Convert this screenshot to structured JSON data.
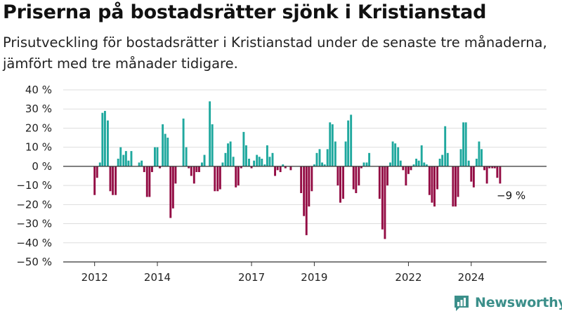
{
  "header": {
    "title": "Priserna på bostadsrätter sjönk i Kristianstad",
    "subtitle": "Prisutveckling för bostadsrätter i Kristianstad under de senaste tre månaderna, jämfört med tre månader tidigare."
  },
  "brand": {
    "name": "Newsworthy",
    "icon": "newsworthy-logo-icon",
    "color": "#3b8f8a"
  },
  "colors": {
    "positive": "#1fa89e",
    "negative": "#930c44",
    "grid": "#dddddd",
    "axis": "#333333"
  },
  "chart_data": {
    "type": "bar",
    "title": "",
    "xlabel": "",
    "ylabel": "",
    "ylim": [
      -50,
      40
    ],
    "y_ticks": [
      40,
      30,
      20,
      10,
      0,
      -10,
      -20,
      -30,
      -40,
      -50
    ],
    "y_tick_labels": [
      "40 %",
      "30 %",
      "20 %",
      "10 %",
      "0 %",
      "−10 %",
      "−20 %",
      "−30 %",
      "−40 %",
      "−50 %"
    ],
    "x_range": [
      2011.0,
      2026.4
    ],
    "x_ticks": [
      2012,
      2014,
      2017,
      2019,
      2022,
      2024
    ],
    "grid": "horizontal",
    "annotation": {
      "text": "−9 %",
      "x": 2025.08,
      "y": -9
    },
    "series": [
      {
        "values": [
          {
            "x": 2012.0,
            "y": -15
          },
          {
            "x": 2012.08,
            "y": -6
          },
          {
            "x": 2012.17,
            "y": 2
          },
          {
            "x": 2012.25,
            "y": 28
          },
          {
            "x": 2012.33,
            "y": 29
          },
          {
            "x": 2012.42,
            "y": 24
          },
          {
            "x": 2012.5,
            "y": -13
          },
          {
            "x": 2012.58,
            "y": -15
          },
          {
            "x": 2012.67,
            "y": -15
          },
          {
            "x": 2012.75,
            "y": 4
          },
          {
            "x": 2012.83,
            "y": 10
          },
          {
            "x": 2012.92,
            "y": 6
          },
          {
            "x": 2013.0,
            "y": 8
          },
          {
            "x": 2013.08,
            "y": 3
          },
          {
            "x": 2013.17,
            "y": 8
          },
          {
            "x": 2013.25,
            "y": 0
          },
          {
            "x": 2013.33,
            "y": 0
          },
          {
            "x": 2013.42,
            "y": 2
          },
          {
            "x": 2013.5,
            "y": 3
          },
          {
            "x": 2013.58,
            "y": -3
          },
          {
            "x": 2013.67,
            "y": -16
          },
          {
            "x": 2013.75,
            "y": -16
          },
          {
            "x": 2013.83,
            "y": -3
          },
          {
            "x": 2013.92,
            "y": 10
          },
          {
            "x": 2014.0,
            "y": 10
          },
          {
            "x": 2014.08,
            "y": -1
          },
          {
            "x": 2014.17,
            "y": 22
          },
          {
            "x": 2014.25,
            "y": 17
          },
          {
            "x": 2014.33,
            "y": 15
          },
          {
            "x": 2014.42,
            "y": -27
          },
          {
            "x": 2014.5,
            "y": -22
          },
          {
            "x": 2014.58,
            "y": -9
          },
          {
            "x": 2014.67,
            "y": 0
          },
          {
            "x": 2014.75,
            "y": 0
          },
          {
            "x": 2014.83,
            "y": 25
          },
          {
            "x": 2014.92,
            "y": 10
          },
          {
            "x": 2015.0,
            "y": -1
          },
          {
            "x": 2015.08,
            "y": -5
          },
          {
            "x": 2015.17,
            "y": -9
          },
          {
            "x": 2015.25,
            "y": -3
          },
          {
            "x": 2015.33,
            "y": -3
          },
          {
            "x": 2015.42,
            "y": 2
          },
          {
            "x": 2015.5,
            "y": 6
          },
          {
            "x": 2015.58,
            "y": 0
          },
          {
            "x": 2015.67,
            "y": 34
          },
          {
            "x": 2015.75,
            "y": 22
          },
          {
            "x": 2015.83,
            "y": -13
          },
          {
            "x": 2015.92,
            "y": -13
          },
          {
            "x": 2016.0,
            "y": -12
          },
          {
            "x": 2016.08,
            "y": 2
          },
          {
            "x": 2016.17,
            "y": 7
          },
          {
            "x": 2016.25,
            "y": 12
          },
          {
            "x": 2016.33,
            "y": 13
          },
          {
            "x": 2016.42,
            "y": 5
          },
          {
            "x": 2016.5,
            "y": -11
          },
          {
            "x": 2016.58,
            "y": -10
          },
          {
            "x": 2016.67,
            "y": -1
          },
          {
            "x": 2016.75,
            "y": 18
          },
          {
            "x": 2016.83,
            "y": 11
          },
          {
            "x": 2016.92,
            "y": 4
          },
          {
            "x": 2017.0,
            "y": -1
          },
          {
            "x": 2017.08,
            "y": 3
          },
          {
            "x": 2017.17,
            "y": 6
          },
          {
            "x": 2017.25,
            "y": 5
          },
          {
            "x": 2017.33,
            "y": 4
          },
          {
            "x": 2017.42,
            "y": 1
          },
          {
            "x": 2017.5,
            "y": 11
          },
          {
            "x": 2017.58,
            "y": 5
          },
          {
            "x": 2017.67,
            "y": 7
          },
          {
            "x": 2017.75,
            "y": -5
          },
          {
            "x": 2017.83,
            "y": -2
          },
          {
            "x": 2017.92,
            "y": -3
          },
          {
            "x": 2018.0,
            "y": 1
          },
          {
            "x": 2018.08,
            "y": -1
          },
          {
            "x": 2018.17,
            "y": 0
          },
          {
            "x": 2018.25,
            "y": -2
          },
          {
            "x": 2018.33,
            "y": 0
          },
          {
            "x": 2018.42,
            "y": 0
          },
          {
            "x": 2018.5,
            "y": 0
          },
          {
            "x": 2018.58,
            "y": -14
          },
          {
            "x": 2018.67,
            "y": -26
          },
          {
            "x": 2018.75,
            "y": -36
          },
          {
            "x": 2018.83,
            "y": -21
          },
          {
            "x": 2018.92,
            "y": -13
          },
          {
            "x": 2019.0,
            "y": 1
          },
          {
            "x": 2019.08,
            "y": 7
          },
          {
            "x": 2019.17,
            "y": 9
          },
          {
            "x": 2019.25,
            "y": 2
          },
          {
            "x": 2019.33,
            "y": 1
          },
          {
            "x": 2019.42,
            "y": 9
          },
          {
            "x": 2019.5,
            "y": 23
          },
          {
            "x": 2019.58,
            "y": 22
          },
          {
            "x": 2019.67,
            "y": 13
          },
          {
            "x": 2019.75,
            "y": -10
          },
          {
            "x": 2019.83,
            "y": -19
          },
          {
            "x": 2019.92,
            "y": -17
          },
          {
            "x": 2020.0,
            "y": 13
          },
          {
            "x": 2020.08,
            "y": 24
          },
          {
            "x": 2020.17,
            "y": 27
          },
          {
            "x": 2020.25,
            "y": -12
          },
          {
            "x": 2020.33,
            "y": -14
          },
          {
            "x": 2020.42,
            "y": -10
          },
          {
            "x": 2020.5,
            "y": -1
          },
          {
            "x": 2020.58,
            "y": 2
          },
          {
            "x": 2020.67,
            "y": 2
          },
          {
            "x": 2020.75,
            "y": 7
          },
          {
            "x": 2020.83,
            "y": 0
          },
          {
            "x": 2020.92,
            "y": 0
          },
          {
            "x": 2021.0,
            "y": 0
          },
          {
            "x": 2021.08,
            "y": -17
          },
          {
            "x": 2021.17,
            "y": -33
          },
          {
            "x": 2021.25,
            "y": -38
          },
          {
            "x": 2021.33,
            "y": -10
          },
          {
            "x": 2021.42,
            "y": 2
          },
          {
            "x": 2021.5,
            "y": 13
          },
          {
            "x": 2021.58,
            "y": 12
          },
          {
            "x": 2021.67,
            "y": 10
          },
          {
            "x": 2021.75,
            "y": 3
          },
          {
            "x": 2021.83,
            "y": -2
          },
          {
            "x": 2021.92,
            "y": -10
          },
          {
            "x": 2022.0,
            "y": -4
          },
          {
            "x": 2022.08,
            "y": -2
          },
          {
            "x": 2022.17,
            "y": 1
          },
          {
            "x": 2022.25,
            "y": 4
          },
          {
            "x": 2022.33,
            "y": 3
          },
          {
            "x": 2022.42,
            "y": 11
          },
          {
            "x": 2022.5,
            "y": 2
          },
          {
            "x": 2022.58,
            "y": 1
          },
          {
            "x": 2022.67,
            "y": -15
          },
          {
            "x": 2022.75,
            "y": -19
          },
          {
            "x": 2022.83,
            "y": -21
          },
          {
            "x": 2022.92,
            "y": -12
          },
          {
            "x": 2023.0,
            "y": 4
          },
          {
            "x": 2023.08,
            "y": 6
          },
          {
            "x": 2023.17,
            "y": 21
          },
          {
            "x": 2023.25,
            "y": 7
          },
          {
            "x": 2023.33,
            "y": 0
          },
          {
            "x": 2023.42,
            "y": -21
          },
          {
            "x": 2023.5,
            "y": -21
          },
          {
            "x": 2023.58,
            "y": -16
          },
          {
            "x": 2023.67,
            "y": 9
          },
          {
            "x": 2023.75,
            "y": 23
          },
          {
            "x": 2023.83,
            "y": 23
          },
          {
            "x": 2023.92,
            "y": 3
          },
          {
            "x": 2024.0,
            "y": -8
          },
          {
            "x": 2024.08,
            "y": -11
          },
          {
            "x": 2024.17,
            "y": 4
          },
          {
            "x": 2024.25,
            "y": 13
          },
          {
            "x": 2024.33,
            "y": 9
          },
          {
            "x": 2024.42,
            "y": -2
          },
          {
            "x": 2024.5,
            "y": -9
          },
          {
            "x": 2024.58,
            "y": -1
          },
          {
            "x": 2024.67,
            "y": -1
          },
          {
            "x": 2024.75,
            "y": -1
          },
          {
            "x": 2024.83,
            "y": -6
          },
          {
            "x": 2024.92,
            "y": -9
          }
        ]
      }
    ]
  }
}
